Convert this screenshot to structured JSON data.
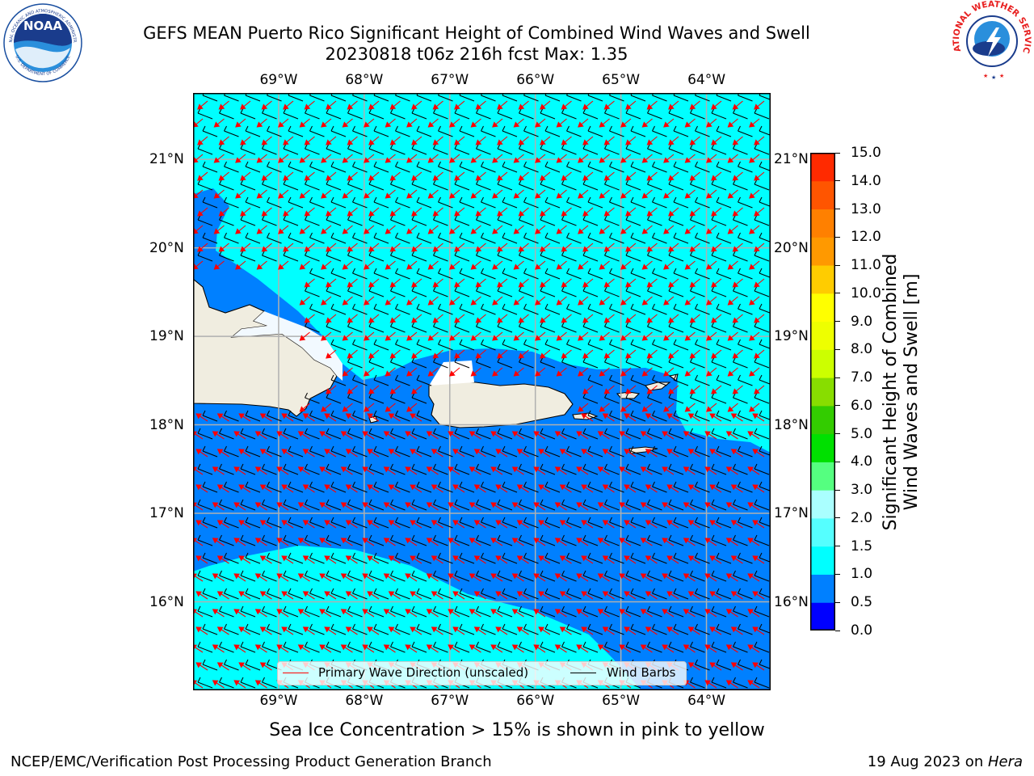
{
  "title": {
    "line1": "GEFS MEAN Puerto Rico Significant Height of Combined Wind Waves and Swell",
    "line2": "20230818 t06z 216h fcst   Max: 1.35"
  },
  "logos": {
    "left": {
      "icon": "noaa-logo",
      "text": "NOAA",
      "ring_top": "NATIONAL OCEANIC AND ATMOSPHERIC ADMINISTRATION",
      "ring_bottom": "U.S. DEPARTMENT OF COMMERCE"
    },
    "right": {
      "icon": "nws-logo",
      "ring_text": "NATIONAL WEATHER SERVICE"
    }
  },
  "map": {
    "lon_labels": [
      "69°W",
      "68°W",
      "67°W",
      "66°W",
      "65°W",
      "64°W"
    ],
    "lat_labels": [
      "21°N",
      "20°N",
      "19°N",
      "18°N",
      "17°N",
      "16°N"
    ],
    "lon_range": [
      -70.0,
      -63.25
    ],
    "lat_range": [
      15.0,
      21.75
    ],
    "grid": true,
    "colors": {
      "land": "#f0ede0",
      "ice_free_low": "#0080ff",
      "wave_1_15": "#00ffff",
      "coast": "#000000",
      "grid": "#b0b0b0",
      "wave_arrow": "#ff0000",
      "wind_barb": "#000000"
    }
  },
  "legend": {
    "placement": "lower-center",
    "items": [
      {
        "label": "Primary Wave Direction (unscaled)",
        "color": "#ff0000"
      },
      {
        "label": "Wind Barbs",
        "color": "#000000"
      }
    ]
  },
  "colorbar": {
    "label_line1": "Significant Height of Combined",
    "label_line2": "Wind Waves and Swell [m]",
    "ticks": [
      "0.0",
      "0.5",
      "1.0",
      "1.5",
      "2.0",
      "3.0",
      "4.0",
      "5.0",
      "6.0",
      "7.0",
      "8.0",
      "9.0",
      "10.0",
      "11.0",
      "12.0",
      "13.0",
      "14.0",
      "15.0"
    ],
    "colors": [
      "#0000ff",
      "#0080ff",
      "#00ffff",
      "#55ffff",
      "#aaffff",
      "#55ff80",
      "#00e000",
      "#33cc00",
      "#88dd00",
      "#ccff00",
      "#eeff00",
      "#ffff00",
      "#ffcc00",
      "#ff9900",
      "#ff8000",
      "#ff5500",
      "#ff2a00",
      "#ff0000"
    ]
  },
  "subtitle": "Sea Ice Concentration > 15% is shown in pink to yellow",
  "footer": {
    "left": "NCEP/EMC/Verification Post Processing Product Generation Branch",
    "right_prefix": "19 Aug 2023 on ",
    "right_host": "Hera"
  }
}
